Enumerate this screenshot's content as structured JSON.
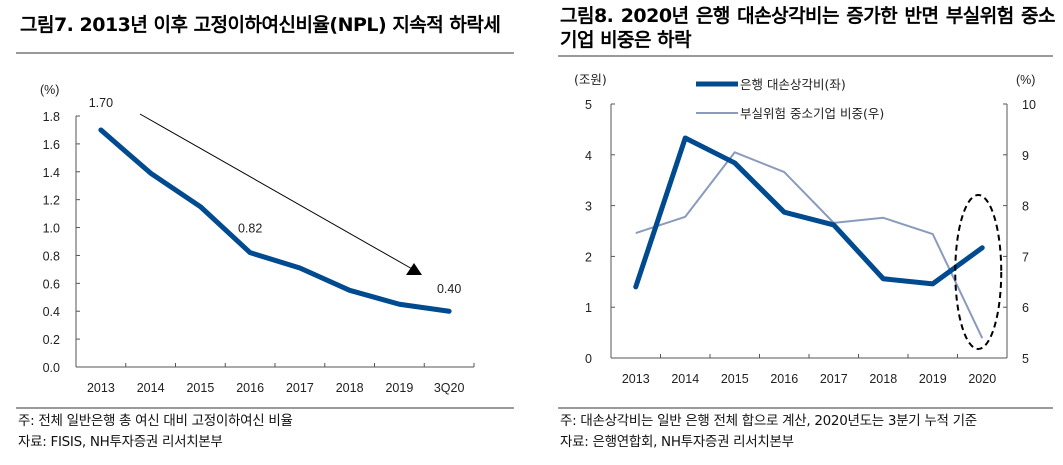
{
  "left": {
    "title": "그림7. 2013년 이후 고정이하여신비율(NPL) 지속적 하락세",
    "note": "주: 전체 일반은행 총 여신 대비 고정이하여신 비율",
    "source": "자료: FISIS, NH투자증권 리서치본부"
  },
  "right": {
    "title": "그림8. 2020년 은행 대손상각비는 증가한 반면 부실위험 중소기업 비중은 하락",
    "note": "주: 대손상각비는 일반 은행 전체 합으로 계산, 2020년도는 3분기 누적 기준",
    "source": "자료: 은행연합회, NH투자증권 리서치본부"
  },
  "colors": {
    "primary_line": "#004a8f",
    "secondary_line": "#8a9bbd",
    "axis": "#555555",
    "annotation": "#000000",
    "rule": "#9a9a9a"
  },
  "chart_data": [
    {
      "type": "line",
      "title": "그림7. 2013년 이후 고정이하여신비율(NPL) 지속적 하락세",
      "ylabel": "(%)",
      "xlabel": "",
      "categories": [
        "2013",
        "2014",
        "2015",
        "2016",
        "2017",
        "2018",
        "2019",
        "3Q20"
      ],
      "ylim": [
        0,
        1.8
      ],
      "yticks": [
        "0.0",
        "0.2",
        "0.4",
        "0.6",
        "0.8",
        "1.0",
        "1.2",
        "1.4",
        "1.6",
        "1.8"
      ],
      "ytick_values": [
        0,
        0.2,
        0.4,
        0.6,
        0.8,
        1.0,
        1.2,
        1.4,
        1.6,
        1.8
      ],
      "grid": false,
      "series": [
        {
          "name": "고정이하여신비율",
          "values": [
            1.7,
            1.39,
            1.15,
            0.82,
            0.71,
            0.55,
            0.45,
            0.4
          ]
        }
      ],
      "data_labels": [
        {
          "category": "2013",
          "text": "1.70"
        },
        {
          "category": "2016",
          "text": "0.82"
        },
        {
          "category": "3Q20",
          "text": "0.40"
        }
      ],
      "annotations": [
        {
          "type": "arrow",
          "description": "downward trend arrow",
          "from": [
            "2013-2014",
            1.8
          ],
          "to": [
            "2019-3Q20",
            0.73
          ]
        }
      ]
    },
    {
      "type": "line",
      "title": "그림8. 2020년 은행 대손상각비는 증가한 반면 부실위험 중소기업 비중은 하락",
      "ylabel_left": "(조원)",
      "ylabel_right": "(%)",
      "categories": [
        "2013",
        "2014",
        "2015",
        "2016",
        "2017",
        "2018",
        "2019",
        "2020"
      ],
      "ylim_left": [
        0,
        5
      ],
      "ylim_right": [
        5,
        10
      ],
      "yticks_left": [
        "0",
        "1",
        "2",
        "3",
        "4",
        "5"
      ],
      "yticks_left_values": [
        0,
        1,
        2,
        3,
        4,
        5
      ],
      "yticks_right": [
        "5",
        "6",
        "7",
        "8",
        "9",
        "10"
      ],
      "yticks_right_values": [
        5,
        6,
        7,
        8,
        9,
        10
      ],
      "grid": false,
      "legend_placement": "top-center",
      "series": [
        {
          "name": "은행 대손상각비(좌)",
          "axis": "left",
          "values": [
            1.4,
            4.33,
            3.84,
            2.87,
            2.62,
            1.56,
            1.46,
            2.17
          ]
        },
        {
          "name": "부실위험 중소기업 비중(우)",
          "axis": "right",
          "values": [
            7.46,
            7.78,
            9.05,
            8.66,
            7.66,
            7.76,
            7.44,
            5.39
          ]
        }
      ],
      "annotations": [
        {
          "type": "dashed-ellipse",
          "description": "highlight around 2020 values",
          "category": "2020"
        }
      ]
    }
  ]
}
